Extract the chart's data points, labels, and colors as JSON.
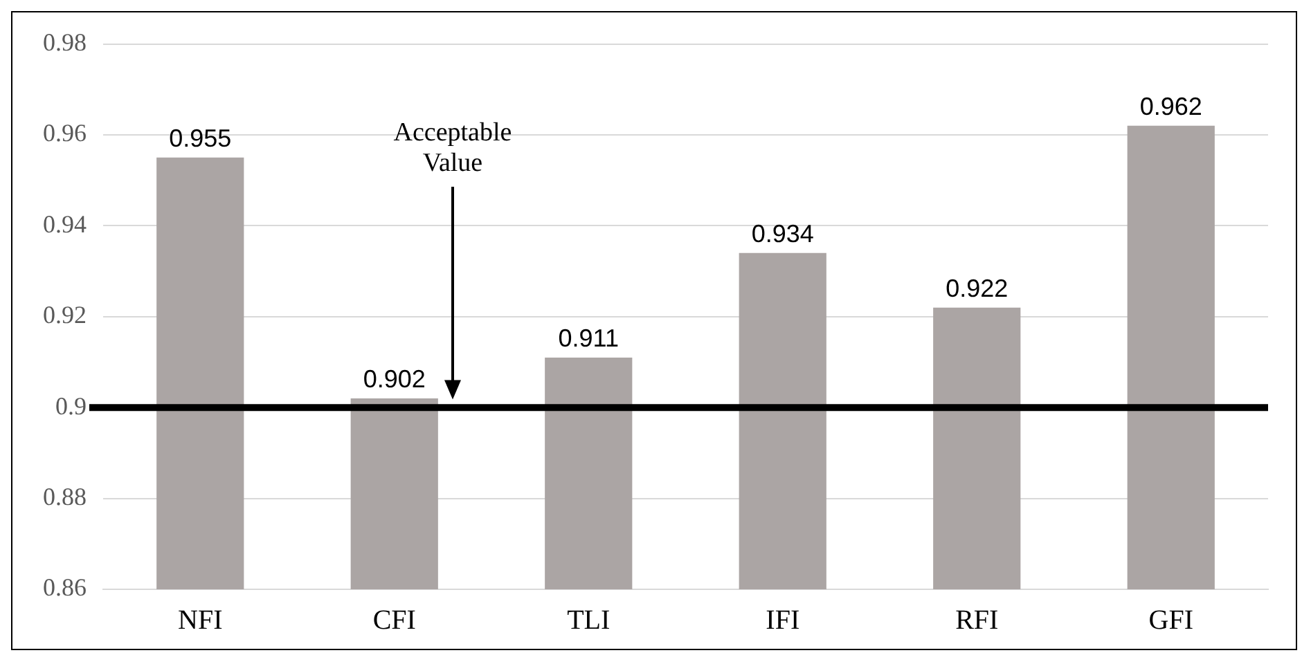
{
  "chart_data": {
    "type": "bar",
    "categories": [
      "NFI",
      "CFI",
      "TLI",
      "IFI",
      "RFI",
      "GFI"
    ],
    "values": [
      0.955,
      0.902,
      0.911,
      0.934,
      0.922,
      0.962
    ],
    "color": "#aba5a4",
    "ylim": [
      0.86,
      0.98
    ],
    "yticks": [
      0.86,
      0.88,
      0.9,
      0.92,
      0.94,
      0.96,
      0.98
    ],
    "grid": "y",
    "data_labels": true,
    "legend": false,
    "ref_lines": [
      {
        "axis": "y",
        "value": 0.9,
        "color": "#000000",
        "label": "Acceptable Value"
      }
    ]
  }
}
